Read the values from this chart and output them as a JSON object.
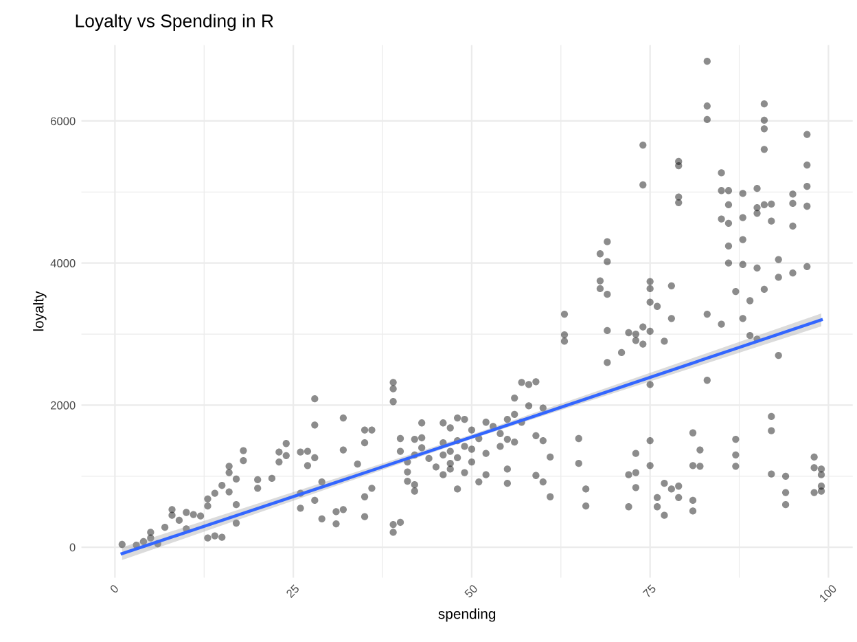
{
  "chart_data": {
    "type": "scatter",
    "title": "Loyalty vs Spending in R",
    "xlabel": "spending",
    "ylabel": "loyalty",
    "xlim": [
      -4.7,
      103.4
    ],
    "ylim": [
      -430,
      7070
    ],
    "xticks": [
      0,
      {
        "value": 12.5,
        "label": null
      },
      25,
      {
        "value": 37.5,
        "label": null
      },
      50,
      {
        "value": 62.5,
        "label": null
      },
      75,
      {
        "value": 87.5,
        "label": null
      },
      100
    ],
    "yticks": [
      0,
      {
        "value": 1000,
        "label": null
      },
      2000,
      {
        "value": 3000,
        "label": null
      },
      4000,
      {
        "value": 5000,
        "label": null
      },
      6000
    ],
    "grid": true,
    "marker": "circle",
    "series": [
      {
        "color": "#000000",
        "x": [
          1,
          3,
          4,
          5,
          5,
          6,
          7,
          8,
          8,
          9,
          10,
          10,
          11,
          12,
          13,
          13,
          13,
          14,
          14,
          15,
          15,
          16,
          16,
          16,
          17,
          17,
          17,
          18,
          18,
          20,
          20,
          22,
          23,
          23,
          24,
          24,
          26,
          26,
          26,
          27,
          27,
          28,
          28,
          28,
          28,
          29,
          29,
          31,
          31,
          32,
          32,
          32,
          34,
          35,
          35,
          35,
          35,
          36,
          36,
          39,
          39,
          39,
          39,
          39,
          40,
          40,
          40,
          41,
          41,
          41,
          42,
          42,
          42,
          42,
          43,
          43,
          43,
          44,
          45,
          46,
          46,
          46,
          46,
          47,
          47,
          47,
          47,
          48,
          48,
          48,
          48,
          49,
          49,
          49,
          50,
          50,
          50,
          51,
          51,
          52,
          52,
          52,
          53,
          54,
          54,
          55,
          55,
          55,
          55,
          56,
          56,
          56,
          57,
          57,
          58,
          58,
          59,
          59,
          59,
          60,
          60,
          60,
          61,
          61,
          63,
          63,
          63,
          65,
          65,
          66,
          66,
          68,
          68,
          68,
          69,
          69,
          69,
          69,
          69,
          71,
          72,
          72,
          72,
          73,
          73,
          73,
          73,
          73,
          74,
          74,
          74,
          74,
          75,
          75,
          75,
          75,
          75,
          75,
          75,
          76,
          76,
          76,
          77,
          77,
          77,
          78,
          78,
          78,
          79,
          79,
          79,
          79,
          79,
          79,
          81,
          81,
          81,
          81,
          82,
          82,
          83,
          83,
          83,
          83,
          83,
          85,
          85,
          85,
          85,
          86,
          86,
          86,
          86,
          86,
          87,
          87,
          87,
          87,
          88,
          88,
          88,
          88,
          88,
          89,
          89,
          90,
          90,
          90,
          90,
          90,
          91,
          91,
          91,
          91,
          91,
          91,
          92,
          92,
          92,
          92,
          92,
          93,
          93,
          93,
          94,
          94,
          94,
          95,
          95,
          95,
          95,
          97,
          97,
          97,
          97,
          97,
          98,
          98,
          98,
          99,
          99,
          99,
          99
        ],
        "values": [
          40,
          30,
          80,
          210,
          130,
          50,
          280,
          530,
          450,
          380,
          490,
          260,
          460,
          440,
          680,
          580,
          130,
          160,
          760,
          870,
          140,
          1140,
          1050,
          780,
          960,
          340,
          600,
          1360,
          1220,
          950,
          830,
          970,
          1340,
          1200,
          1460,
          1290,
          1340,
          550,
          760,
          1350,
          1150,
          2090,
          1720,
          660,
          1260,
          920,
          400,
          500,
          330,
          1820,
          530,
          1370,
          1170,
          1650,
          1470,
          710,
          430,
          1650,
          830,
          2230,
          2320,
          2050,
          320,
          210,
          350,
          1530,
          1350,
          1060,
          930,
          1200,
          1520,
          1300,
          790,
          880,
          1540,
          1400,
          1750,
          1250,
          1130,
          1750,
          1470,
          1300,
          1020,
          1680,
          1350,
          1100,
          1180,
          1820,
          1500,
          1260,
          820,
          1800,
          1420,
          1050,
          1650,
          1380,
          1200,
          1530,
          920,
          1760,
          1320,
          1020,
          1700,
          1600,
          1420,
          1800,
          1520,
          1100,
          900,
          2100,
          1870,
          1480,
          2320,
          1760,
          2290,
          1990,
          2330,
          1570,
          1010,
          1960,
          1500,
          920,
          1270,
          710,
          3280,
          2990,
          2900,
          1530,
          1180,
          820,
          580,
          4130,
          3750,
          3640,
          4300,
          4020,
          3560,
          3050,
          2600,
          2740,
          3020,
          1020,
          570,
          2910,
          3000,
          1320,
          1050,
          840,
          5660,
          5100,
          3100,
          2860,
          3740,
          3640,
          3450,
          3040,
          2290,
          1500,
          1150,
          3390,
          700,
          570,
          2900,
          900,
          450,
          3680,
          3220,
          820,
          5430,
          5370,
          4930,
          4850,
          860,
          700,
          1610,
          1150,
          660,
          510,
          1370,
          1140,
          6840,
          6210,
          6020,
          3280,
          2350,
          5270,
          5020,
          4620,
          3140,
          5020,
          4820,
          4560,
          4240,
          4000,
          3600,
          1520,
          1140,
          1300,
          4980,
          4640,
          4330,
          3980,
          3220,
          3470,
          2980,
          5050,
          4780,
          4700,
          3930,
          2930,
          6240,
          6010,
          5890,
          5600,
          4820,
          3630,
          4830,
          4590,
          1840,
          1640,
          1030,
          4050,
          3800,
          2700,
          1000,
          770,
          600,
          4970,
          4840,
          4520,
          3860,
          5810,
          5380,
          5080,
          4800,
          3950,
          1270,
          1120,
          770,
          1100,
          1020,
          860,
          790
        ]
      },
      {
        "type": "line",
        "color": "#3366ff",
        "marker": "none",
        "x": [
          1,
          50,
          99
        ],
        "values": [
          -90,
          1550,
          3200
        ],
        "lower": [
          -180,
          1525,
          3110
        ],
        "upper": [
          0,
          1585,
          3290
        ]
      }
    ]
  }
}
